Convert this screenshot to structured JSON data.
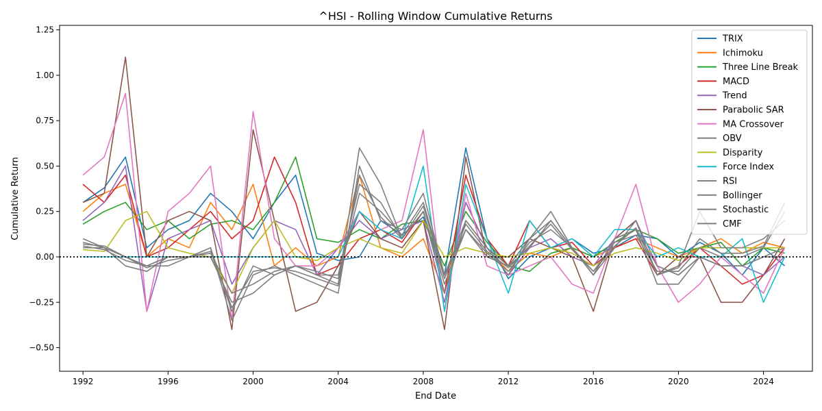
{
  "chart_data": {
    "type": "line",
    "title": "^HSI - Rolling Window Cumulative Returns",
    "xlabel": "End Date",
    "ylabel": "Cumulative Return",
    "xlim": [
      1990.9,
      2026.3
    ],
    "ylim": [
      -0.63,
      1.275
    ],
    "xticks": [
      1992,
      1996,
      2000,
      2004,
      2008,
      2012,
      2016,
      2020,
      2024
    ],
    "xtick_labels": [
      "1992",
      "1996",
      "2000",
      "2004",
      "2008",
      "2012",
      "2016",
      "2020",
      "2024"
    ],
    "yticks": [
      -0.5,
      -0.25,
      0.0,
      0.25,
      0.5,
      0.75,
      1.0,
      1.25
    ],
    "ytick_labels": [
      "−0.50",
      "−0.25",
      "0.00",
      "0.25",
      "0.50",
      "0.75",
      "1.00",
      "1.25"
    ],
    "reference_line": {
      "y": 0.0,
      "style": "dotted",
      "color": "#000000"
    },
    "legend_position": "top-right",
    "grid": false,
    "x_step": 1,
    "x_start": 1992,
    "series": [
      {
        "name": "TRIX",
        "color": "#1f77b4",
        "values": [
          0.3,
          0.38,
          0.55,
          0.05,
          0.15,
          0.2,
          0.35,
          0.25,
          0.1,
          0.3,
          0.45,
          0.02,
          -0.02,
          0.0,
          0.2,
          0.12,
          0.22,
          -0.1,
          0.6,
          0.1,
          -0.12,
          0.0,
          0.05,
          0.1,
          0.02,
          0.05,
          0.12,
          0.1,
          0.0,
          0.08,
          0.02,
          -0.1,
          0.05,
          -0.05
        ]
      },
      {
        "name": "Ichimoku",
        "color": "#ff7f0e",
        "values": [
          0.25,
          0.35,
          0.4,
          0.0,
          0.1,
          0.05,
          0.3,
          0.15,
          0.4,
          -0.05,
          0.05,
          -0.05,
          0.0,
          0.45,
          0.05,
          0.0,
          0.1,
          -0.2,
          0.3,
          0.05,
          -0.08,
          0.02,
          0.0,
          0.05,
          0.0,
          0.05,
          0.1,
          0.05,
          0.0,
          0.05,
          0.1,
          0.02,
          0.08,
          0.05
        ]
      },
      {
        "name": "Three Line Break",
        "color": "#2ca02c",
        "values": [
          0.18,
          0.25,
          0.3,
          0.15,
          0.2,
          0.1,
          0.18,
          0.2,
          0.15,
          0.3,
          0.55,
          0.1,
          0.08,
          0.15,
          0.1,
          0.18,
          0.2,
          -0.05,
          0.25,
          0.08,
          -0.05,
          -0.08,
          0.02,
          0.05,
          0.0,
          0.08,
          0.15,
          0.1,
          0.02,
          0.05,
          0.08,
          -0.05,
          0.05,
          0.02
        ]
      },
      {
        "name": "MACD",
        "color": "#d62728",
        "values": [
          0.4,
          0.3,
          0.45,
          0.0,
          0.05,
          0.15,
          0.25,
          0.1,
          0.2,
          0.55,
          0.3,
          -0.1,
          -0.05,
          0.1,
          0.15,
          0.08,
          0.25,
          -0.2,
          0.45,
          0.1,
          -0.05,
          0.2,
          0.05,
          0.08,
          -0.05,
          0.05,
          0.1,
          -0.1,
          -0.05,
          0.05,
          -0.05,
          -0.15,
          -0.1,
          0.05
        ]
      },
      {
        "name": "Trend",
        "color": "#9467bd",
        "values": [
          0.2,
          0.3,
          0.5,
          -0.3,
          0.1,
          0.15,
          0.2,
          -0.15,
          0.05,
          0.2,
          0.15,
          -0.1,
          0.05,
          0.2,
          0.1,
          0.15,
          0.2,
          -0.25,
          0.3,
          0.05,
          -0.1,
          0.05,
          0.1,
          0.0,
          -0.05,
          0.1,
          0.2,
          -0.05,
          -0.1,
          0.0,
          -0.05,
          -0.05,
          -0.1,
          0.0
        ]
      },
      {
        "name": "Parabolic SAR",
        "color": "#8c564b",
        "values": [
          0.3,
          0.35,
          1.1,
          0.0,
          0.2,
          0.25,
          0.2,
          -0.4,
          0.7,
          0.2,
          -0.3,
          -0.25,
          -0.05,
          0.25,
          0.1,
          0.05,
          0.2,
          -0.4,
          0.55,
          0.0,
          0.0,
          0.1,
          0.05,
          0.0,
          -0.3,
          0.1,
          0.2,
          -0.1,
          0.0,
          0.0,
          -0.25,
          -0.25,
          -0.1,
          0.1
        ]
      },
      {
        "name": "MA Crossover",
        "color": "#e377c2",
        "values": [
          0.45,
          0.55,
          0.9,
          -0.3,
          0.25,
          0.35,
          0.5,
          -0.35,
          0.8,
          0.1,
          -0.05,
          -0.05,
          0.05,
          0.25,
          0.15,
          0.2,
          0.7,
          -0.3,
          0.35,
          -0.05,
          -0.1,
          -0.05,
          0.0,
          -0.15,
          -0.2,
          0.1,
          0.4,
          -0.05,
          -0.25,
          -0.15,
          0.0,
          -0.1,
          -0.2,
          0.05
        ]
      },
      {
        "name": "OBV",
        "color": "#7f7f7f",
        "values": [
          0.05,
          0.05,
          0.0,
          -0.05,
          -0.05,
          0.0,
          0.05,
          -0.3,
          -0.05,
          -0.1,
          -0.05,
          -0.1,
          -0.15,
          0.6,
          0.4,
          0.1,
          0.25,
          -0.2,
          0.2,
          0.05,
          -0.1,
          0.1,
          0.2,
          0.05,
          -0.1,
          0.1,
          0.15,
          -0.05,
          -0.1,
          0.0,
          -0.05,
          -0.05,
          0.0,
          0.05
        ]
      },
      {
        "name": "Disparity",
        "color": "#bcbd22",
        "values": [
          0.04,
          0.03,
          0.2,
          0.25,
          0.05,
          0.02,
          0.0,
          -0.2,
          0.05,
          0.2,
          0.0,
          -0.02,
          0.05,
          0.1,
          0.05,
          0.02,
          0.2,
          0.0,
          0.05,
          0.02,
          0.0,
          0.02,
          0.05,
          0.02,
          -0.05,
          0.02,
          0.05,
          0.02,
          -0.02,
          0.05,
          0.05,
          0.05,
          0.05,
          0.05
        ]
      },
      {
        "name": "Force Index",
        "color": "#17becf",
        "values": [
          0.0,
          0.0,
          0.0,
          0.0,
          0.0,
          0.0,
          0.0,
          0.0,
          0.0,
          0.0,
          0.0,
          0.0,
          0.0,
          0.25,
          0.15,
          0.1,
          0.5,
          -0.3,
          0.4,
          0.1,
          -0.2,
          0.2,
          0.05,
          0.1,
          0.0,
          0.15,
          0.15,
          0.0,
          0.05,
          0.0,
          0.0,
          0.1,
          -0.25,
          0.0
        ]
      },
      {
        "name": "RSI",
        "color": "#7f7f7f",
        "values": [
          0.1,
          0.05,
          0.0,
          -0.05,
          0.0,
          0.0,
          0.0,
          -0.25,
          -0.2,
          -0.1,
          -0.05,
          -0.1,
          -0.1,
          0.4,
          0.3,
          0.1,
          0.25,
          -0.15,
          0.15,
          0.0,
          -0.05,
          0.1,
          0.25,
          0.05,
          -0.1,
          0.1,
          0.15,
          -0.15,
          -0.15,
          0.0,
          -0.05,
          -0.05,
          0.0,
          0.0
        ]
      },
      {
        "name": "Bollinger",
        "color": "#7f7f7f",
        "values": [
          0.08,
          0.05,
          -0.05,
          -0.08,
          0.0,
          0.0,
          0.05,
          -0.35,
          -0.1,
          -0.05,
          -0.1,
          -0.15,
          -0.2,
          0.5,
          0.2,
          0.15,
          0.35,
          -0.1,
          0.2,
          0.05,
          -0.05,
          0.05,
          0.2,
          0.05,
          -0.1,
          0.05,
          0.2,
          -0.1,
          -0.05,
          0.25,
          0.05,
          0.05,
          0.1,
          0.2
        ]
      },
      {
        "name": "Stochastic",
        "color": "#7f7f7f",
        "values": [
          0.06,
          0.04,
          -0.02,
          -0.05,
          0.0,
          0.0,
          0.02,
          -0.2,
          -0.15,
          -0.08,
          -0.05,
          -0.08,
          -0.12,
          0.35,
          0.25,
          0.12,
          0.3,
          -0.1,
          0.15,
          0.02,
          -0.08,
          0.08,
          0.15,
          0.05,
          -0.08,
          0.08,
          0.12,
          -0.08,
          -0.08,
          0.05,
          0.0,
          0.0,
          0.05,
          0.25
        ]
      },
      {
        "name": "CMF",
        "color": "#7f7f7f",
        "values": [
          0.07,
          0.06,
          0.0,
          -0.06,
          -0.02,
          0.0,
          0.03,
          -0.28,
          -0.08,
          -0.06,
          -0.08,
          -0.12,
          -0.16,
          0.45,
          0.22,
          0.1,
          0.28,
          -0.12,
          0.18,
          0.03,
          -0.06,
          0.06,
          0.18,
          0.04,
          -0.08,
          0.06,
          0.16,
          -0.1,
          -0.06,
          0.1,
          0.02,
          0.02,
          0.06,
          0.3
        ]
      }
    ]
  }
}
